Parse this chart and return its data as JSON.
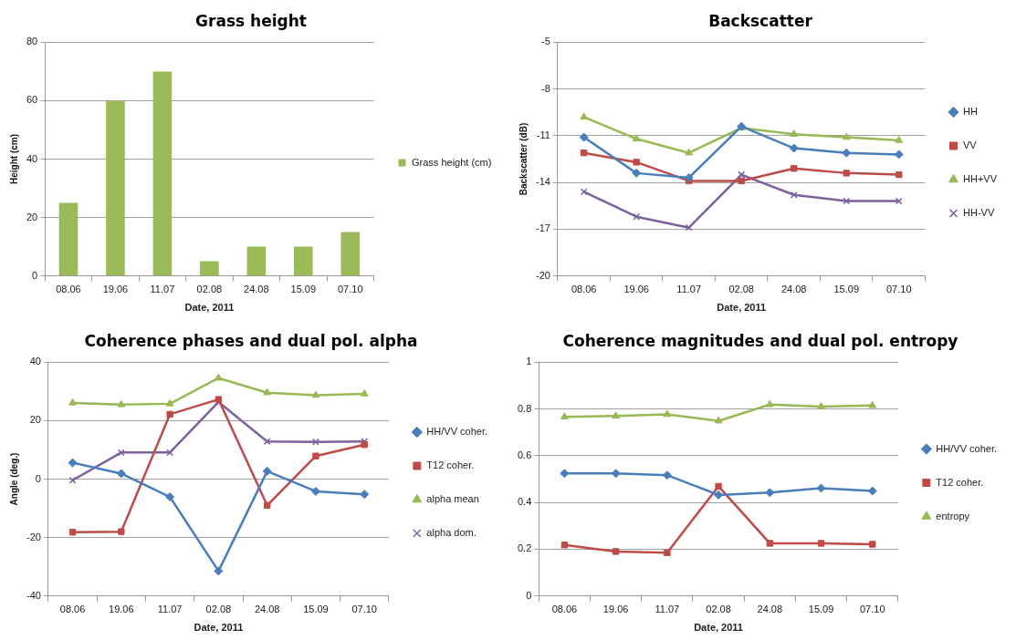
{
  "chart_data": [
    {
      "type": "bar",
      "title": "Grass height",
      "xlabel": "Date, 2011",
      "ylabel": "Height (cm)",
      "categories": [
        "08.06",
        "19.06",
        "11.07",
        "02.08",
        "24.08",
        "15.09",
        "07.10"
      ],
      "series": [
        {
          "name": "Grass height (cm)",
          "color": "#9bbb59",
          "values": [
            25,
            60,
            70,
            5,
            10,
            10,
            15
          ]
        }
      ],
      "ylim": [
        0,
        80
      ],
      "yticks": [
        0,
        20,
        40,
        60,
        80
      ],
      "grid": "y",
      "legend": "right"
    },
    {
      "type": "line",
      "title": "Backscatter",
      "xlabel": "Date, 2011",
      "ylabel": "Backscatter (dB)",
      "categories": [
        "08.06",
        "19.06",
        "11.07",
        "02.08",
        "24.08",
        "15.09",
        "07.10"
      ],
      "series": [
        {
          "name": "HH",
          "color": "#4a7ebb",
          "marker": "diamond",
          "values": [
            -11.1,
            -13.4,
            -13.7,
            -10.4,
            -11.8,
            -12.1,
            -12.2
          ]
        },
        {
          "name": "VV",
          "color": "#be4b48",
          "marker": "square",
          "values": [
            -12.1,
            -12.7,
            -13.9,
            -13.9,
            -13.1,
            -13.4,
            -13.5
          ]
        },
        {
          "name": "HH+VV",
          "color": "#98b954",
          "marker": "triangle",
          "values": [
            -9.8,
            -11.2,
            -12.1,
            -10.5,
            -10.9,
            -11.1,
            -11.3
          ]
        },
        {
          "name": "HH-VV",
          "color": "#7d60a0",
          "marker": "cross",
          "values": [
            -14.6,
            -16.2,
            -16.9,
            -13.5,
            -14.8,
            -15.2,
            -15.2
          ]
        }
      ],
      "ylim": [
        -20,
        -5
      ],
      "yticks": [
        -20,
        -17,
        -14,
        -11,
        -8,
        -5
      ],
      "grid": "y",
      "legend": "right"
    },
    {
      "type": "line",
      "title": "Coherence phases and dual pol. alpha",
      "xlabel": "Date, 2011",
      "ylabel": "Angle (deg.)",
      "categories": [
        "08.06",
        "19.06",
        "11.07",
        "02.08",
        "24.08",
        "15.09",
        "07.10"
      ],
      "series": [
        {
          "name": "HH/VV coher.",
          "color": "#4a7ebb",
          "marker": "diamond",
          "values": [
            5.6,
            1.9,
            -6.1,
            -31.5,
            2.7,
            -4.2,
            -5.2
          ]
        },
        {
          "name": "T12 coher.",
          "color": "#be4b48",
          "marker": "square",
          "values": [
            -18.2,
            -18,
            22.2,
            27.3,
            -9,
            7.9,
            11.8
          ]
        },
        {
          "name": "alpha mean",
          "color": "#98b954",
          "marker": "triangle",
          "values": [
            26.1,
            25.5,
            25.8,
            34.6,
            29.6,
            28.7,
            29.2
          ]
        },
        {
          "name": "alpha dom.",
          "color": "#7d60a0",
          "marker": "cross",
          "values": [
            -0.4,
            9.1,
            9.1,
            26.4,
            12.9,
            12.7,
            12.9
          ]
        }
      ],
      "ylim": [
        -40,
        40
      ],
      "yticks": [
        -40,
        -20,
        0,
        20,
        40
      ],
      "grid": "y",
      "legend": "right"
    },
    {
      "type": "line",
      "title": "Coherence magnitudes and dual pol. entropy",
      "xlabel": "Date, 2011",
      "categories": [
        "08.06",
        "19.06",
        "11.07",
        "02.08",
        "24.08",
        "15.09",
        "07.10"
      ],
      "series": [
        {
          "name": "HH/VV coher.",
          "color": "#4a7ebb",
          "marker": "diamond",
          "values": [
            0.524,
            0.524,
            0.517,
            0.432,
            0.442,
            0.461,
            0.449
          ]
        },
        {
          "name": "T12 coher.",
          "color": "#be4b48",
          "marker": "square",
          "values": [
            0.218,
            0.19,
            0.185,
            0.469,
            0.225,
            0.225,
            0.221
          ]
        },
        {
          "name": "entropy",
          "color": "#98b954",
          "marker": "triangle",
          "values": [
            0.766,
            0.77,
            0.777,
            0.749,
            0.819,
            0.81,
            0.815
          ]
        }
      ],
      "ylim": [
        0,
        1
      ],
      "yticks": [
        0,
        0.2,
        0.4,
        0.6,
        0.8,
        1
      ],
      "grid": "y",
      "legend": "right"
    }
  ]
}
